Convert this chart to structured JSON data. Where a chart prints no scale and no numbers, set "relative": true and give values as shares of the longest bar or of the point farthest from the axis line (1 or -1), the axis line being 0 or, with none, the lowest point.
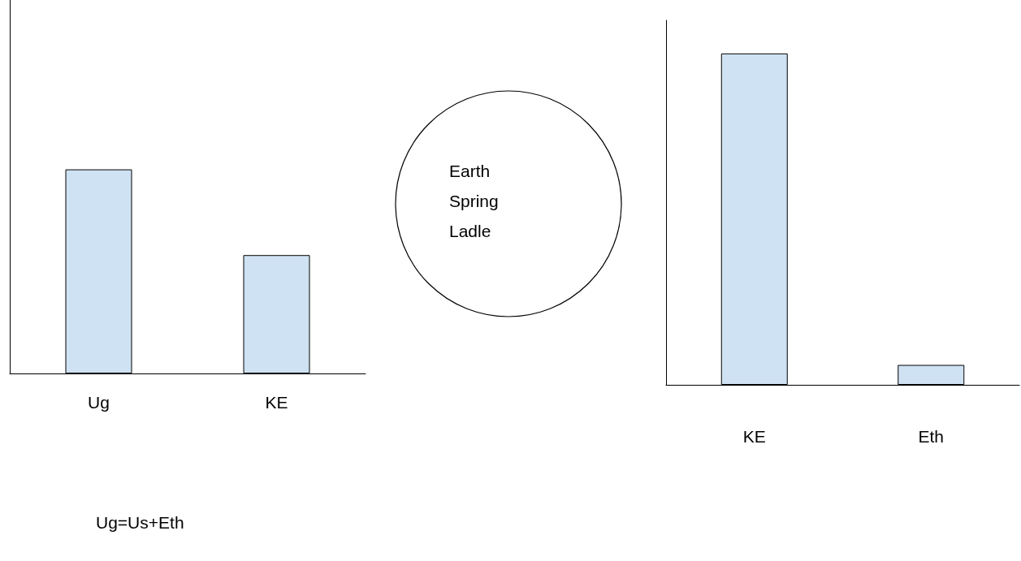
{
  "chart_data": [
    {
      "type": "bar",
      "categories": [
        "Ug",
        "KE"
      ],
      "values": [
        1,
        0.58
      ],
      "relative": true,
      "color": "#cfe2f3",
      "annotations": [
        "Ug=Us+Eth"
      ]
    },
    {
      "type": "other",
      "annotations": [
        "Earth",
        "Spring",
        "Ladle"
      ]
    },
    {
      "type": "bar",
      "categories": [
        "KE",
        "Eth"
      ],
      "values": [
        1,
        0.06
      ],
      "relative": true,
      "color": "#cfe2f3"
    }
  ]
}
